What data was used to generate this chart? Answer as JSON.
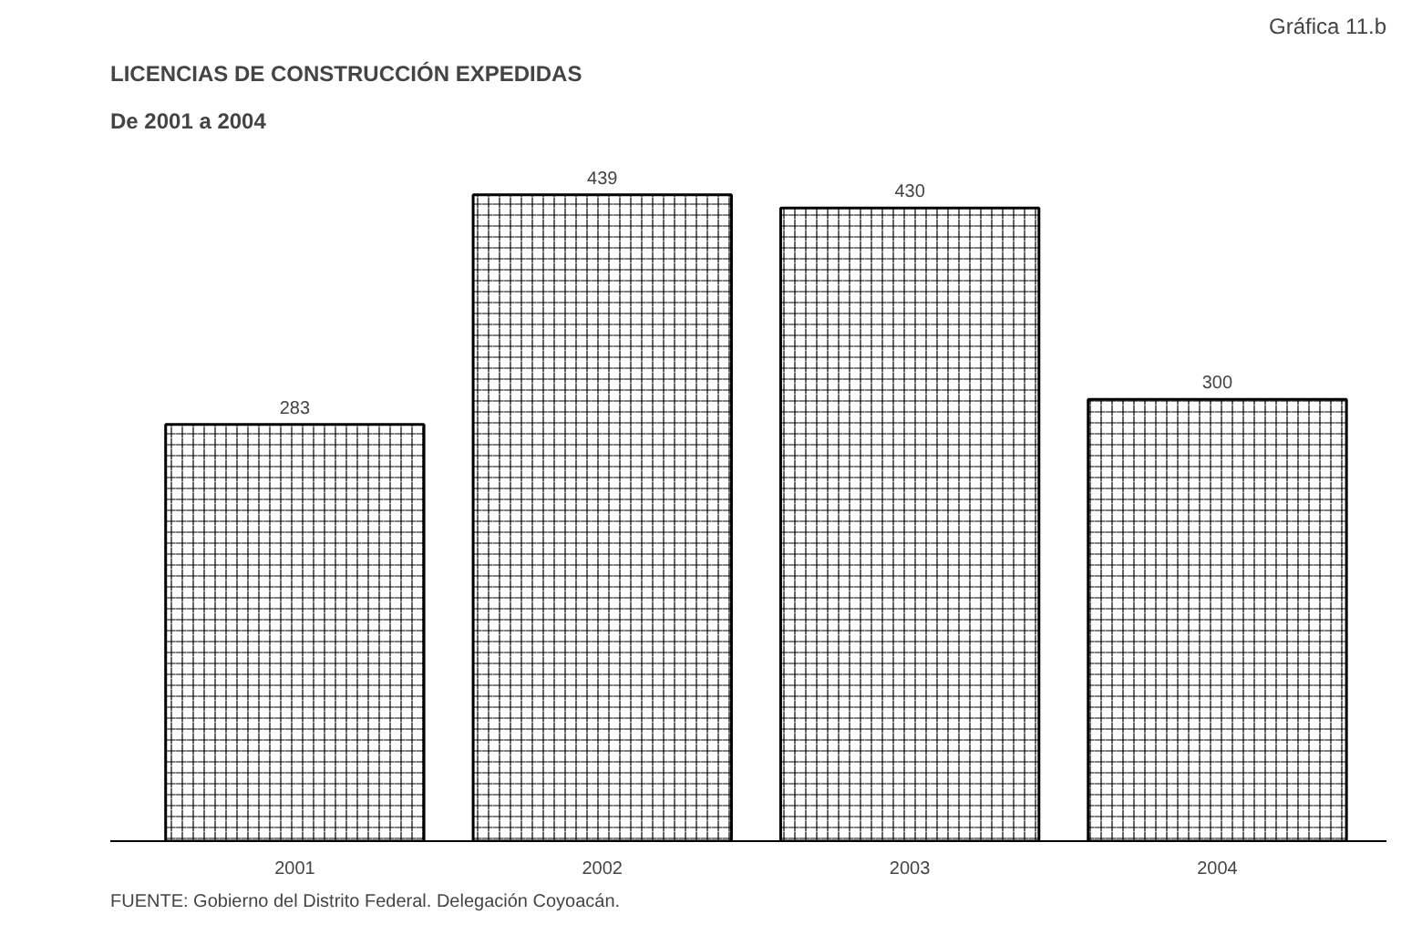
{
  "chart_data": {
    "type": "bar",
    "title": "LICENCIAS DE CONSTRUCCIÓN EXPEDIDAS",
    "subtitle": "De 2001 a 2004",
    "categories": [
      "2001",
      "2002",
      "2003",
      "2004"
    ],
    "values": [
      283,
      439,
      430,
      300
    ],
    "color": "#000000",
    "data_labels": true,
    "annotations": [
      "Gráfica 11.b",
      "FUENTE: Gobierno del Distrito Federal. Delegación Coyoacán."
    ]
  }
}
